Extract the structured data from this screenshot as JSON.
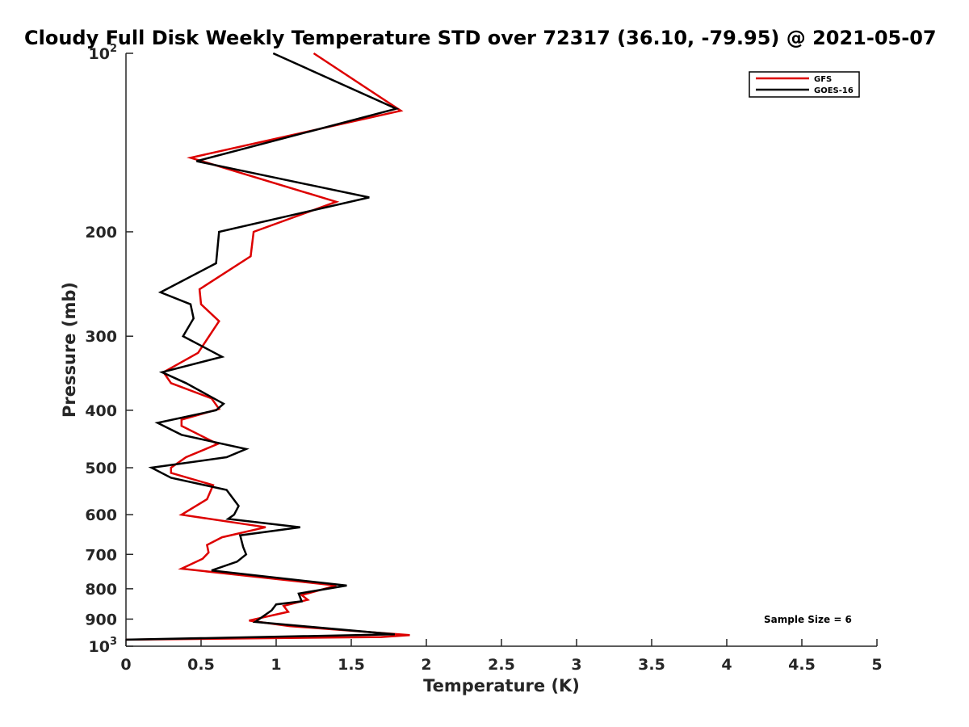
{
  "chart_data": {
    "type": "line",
    "title": "Cloudy Full Disk Weekly Temperature STD over 72317 (36.10, -79.95) @ 2021-05-07",
    "xlabel": "Temperature (K)",
    "ylabel": "Pressure (mb)",
    "xlim": [
      0,
      5
    ],
    "ylim": [
      100,
      1000
    ],
    "y_scale": "log",
    "y_reversed": true,
    "x_ticks": [
      "0",
      "0.5",
      "1",
      "1.5",
      "2",
      "2.5",
      "3",
      "3.5",
      "4",
      "4.5",
      "5"
    ],
    "y_ticks": [
      {
        "value": 100,
        "base": "10",
        "exp": "2"
      },
      {
        "value": 200,
        "label": "200"
      },
      {
        "value": 300,
        "label": "300"
      },
      {
        "value": 400,
        "label": "400"
      },
      {
        "value": 500,
        "label": "500"
      },
      {
        "value": 600,
        "label": "600"
      },
      {
        "value": 700,
        "label": "700"
      },
      {
        "value": 800,
        "label": "800"
      },
      {
        "value": 900,
        "label": "900"
      },
      {
        "value": 1000,
        "base": "10",
        "exp": "3"
      }
    ],
    "grid": false,
    "legend": "top-right",
    "annotation": "Sample Size = 6",
    "series": [
      {
        "name": "GFS",
        "color": "#dd0000",
        "x": [
          1.25,
          1.83,
          0.43,
          1.4,
          0.85,
          0.83,
          0.49,
          0.5,
          0.62,
          0.48,
          0.25,
          0.3,
          0.57,
          0.62,
          0.37,
          0.37,
          0.61,
          0.4,
          0.3,
          0.3,
          0.58,
          0.54,
          0.37,
          0.93,
          0.64,
          0.54,
          0.55,
          0.51,
          0.37,
          1.4,
          1.17,
          1.21,
          1.05,
          1.08,
          0.82,
          1.09,
          1.89,
          1.7,
          0.0
        ],
        "y": [
          100,
          125,
          150,
          178,
          200,
          220,
          250,
          265,
          283,
          320,
          345,
          360,
          382,
          398,
          415,
          425,
          456,
          480,
          500,
          510,
          535,
          565,
          600,
          630,
          655,
          675,
          695,
          712,
          740,
          790,
          820,
          835,
          855,
          875,
          905,
          925,
          958,
          965,
          975
        ]
      },
      {
        "name": "GOES-16",
        "color": "#000000",
        "x": [
          0.98,
          1.8,
          0.47,
          1.62,
          0.62,
          0.6,
          0.23,
          0.43,
          0.45,
          0.38,
          0.64,
          0.24,
          0.4,
          0.65,
          0.6,
          0.21,
          0.37,
          0.8,
          0.67,
          0.17,
          0.3,
          0.67,
          0.75,
          0.72,
          0.68,
          1.16,
          0.76,
          0.78,
          0.8,
          0.74,
          0.57,
          1.47,
          1.15,
          1.17,
          1.0,
          0.97,
          0.86,
          1.79,
          0.0
        ],
        "y": [
          100,
          124,
          152,
          175,
          200,
          226,
          253,
          265,
          280,
          300,
          325,
          345,
          360,
          390,
          400,
          420,
          440,
          465,
          480,
          500,
          520,
          545,
          580,
          600,
          610,
          630,
          650,
          680,
          700,
          720,
          745,
          790,
          815,
          840,
          850,
          870,
          910,
          955,
          975
        ]
      }
    ]
  }
}
